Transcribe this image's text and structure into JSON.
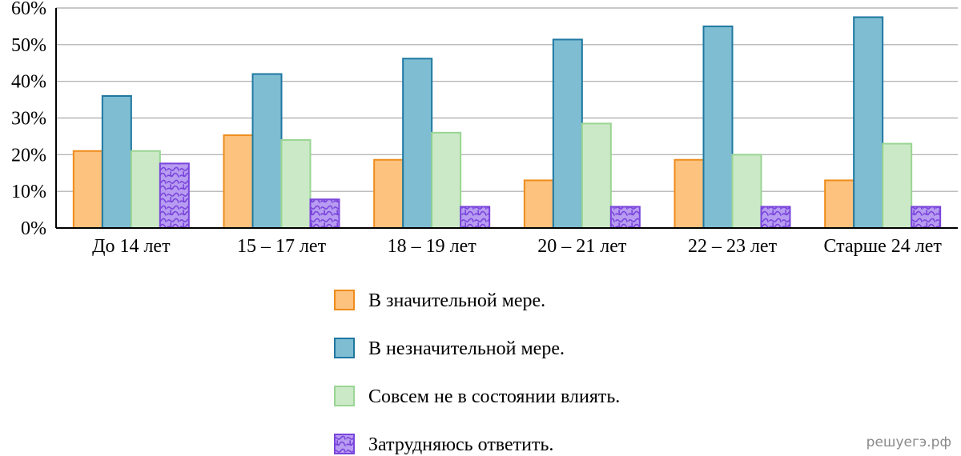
{
  "chart_data": {
    "type": "bar",
    "categories": [
      "До 14 лет",
      "15 – 17 лет",
      "18 – 19 лет",
      "20 – 21 лет",
      "22 – 23 лет",
      "Старше 24 лет"
    ],
    "y_ticks": [
      "0%",
      "10%",
      "20%",
      "30%",
      "40%",
      "50%",
      "60%"
    ],
    "ylim": [
      0,
      60
    ],
    "y_unit": "%",
    "grid": true,
    "legend_position": "bottom-center",
    "series": [
      {
        "name": "В значительной мере.",
        "fill": "#fcc27e",
        "stroke": "#ef8c1c",
        "pattern": false,
        "values": [
          21,
          25.3,
          18.6,
          13,
          18.6,
          13
        ]
      },
      {
        "name": "В незначительной мере.",
        "fill": "#7fbdd3",
        "stroke": "#1f78a0",
        "pattern": false,
        "values": [
          36,
          42,
          46.2,
          51.4,
          55,
          57.5
        ]
      },
      {
        "name": "Совсем не в состоянии влиять.",
        "fill": "#cbe9c7",
        "stroke": "#9ad593",
        "pattern": false,
        "values": [
          21,
          24,
          26,
          28.5,
          20,
          23
        ]
      },
      {
        "name": "Затрудняюсь ответить.",
        "fill": "#b79cf1",
        "stroke": "#7a45dc",
        "pattern": true,
        "values": [
          17.6,
          7.8,
          5.8,
          5.8,
          5.8,
          5.8
        ]
      }
    ]
  },
  "watermark": "решуегэ.рф"
}
